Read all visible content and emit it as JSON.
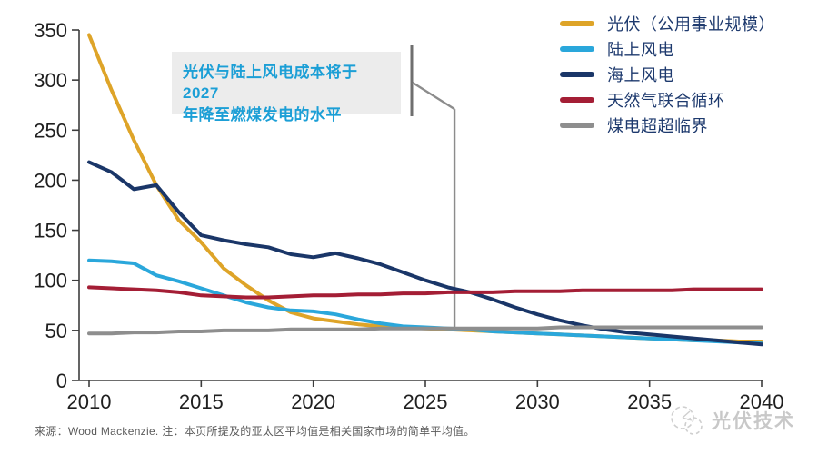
{
  "chart_data": {
    "type": "line",
    "title": "",
    "xlabel": "",
    "ylabel": "",
    "xlim": [
      2010,
      2040
    ],
    "ylim": [
      0,
      350
    ],
    "grid": false,
    "legend_position": "top-right",
    "x_ticks": [
      2010,
      2015,
      2020,
      2025,
      2030,
      2035,
      2040
    ],
    "y_ticks": [
      0,
      50,
      100,
      150,
      200,
      250,
      300,
      350
    ],
    "x_start_year": 2010,
    "series": [
      {
        "key": "solar-pv",
        "name": "光伏（公用事业规模）",
        "color": "#DEA428",
        "values": [
          345,
          290,
          240,
          195,
          160,
          138,
          112,
          95,
          80,
          68,
          62,
          59,
          56,
          54,
          53,
          52,
          51,
          50,
          49,
          48,
          47,
          46,
          45,
          44,
          43,
          42,
          41,
          40,
          40,
          39,
          39
        ]
      },
      {
        "key": "onshore-wind",
        "name": "陆上风电",
        "color": "#2AA7DB",
        "values": [
          120,
          119,
          117,
          105,
          99,
          92,
          85,
          78,
          73,
          70,
          69,
          66,
          61,
          57,
          54,
          53,
          52,
          51,
          49,
          48,
          47,
          46,
          45,
          44,
          43,
          42,
          41,
          40,
          39,
          38,
          37
        ]
      },
      {
        "key": "offshore-wind",
        "name": "海上风电",
        "color": "#1A3668",
        "values": [
          218,
          208,
          191,
          195,
          168,
          145,
          140,
          136,
          133,
          126,
          123,
          127,
          122,
          116,
          108,
          100,
          93,
          88,
          81,
          73,
          66,
          60,
          55,
          51,
          48,
          46,
          44,
          42,
          40,
          38,
          36
        ]
      },
      {
        "key": "gas-ccgt",
        "name": "天然气联合循环",
        "color": "#A41E35",
        "values": [
          93,
          92,
          91,
          90,
          88,
          85,
          84,
          83,
          83,
          84,
          85,
          85,
          86,
          86,
          87,
          87,
          88,
          88,
          88,
          89,
          89,
          89,
          90,
          90,
          90,
          90,
          90,
          91,
          91,
          91,
          91
        ]
      },
      {
        "key": "coal-usc",
        "name": "煤电超超临界",
        "color": "#8E8E8E",
        "values": [
          47,
          47,
          48,
          48,
          49,
          49,
          50,
          50,
          50,
          51,
          51,
          51,
          51,
          52,
          52,
          52,
          52,
          52,
          52,
          52,
          52,
          53,
          53,
          53,
          53,
          53,
          53,
          53,
          53,
          53,
          53
        ]
      }
    ],
    "annotation": {
      "text_line1": "光伏与陆上风电成本将于2027",
      "text_line2": "年降至燃煤发电的水平",
      "text_color": "#1C9FD6",
      "box_color": "#ececec",
      "pointer_year": 2026.3,
      "pointer_top_value": 271,
      "pointer_bottom_value": 51,
      "line_color": "#8C8C8C"
    },
    "axis_color": "#3d3d3d",
    "tick_label_color": "#1f1f1f",
    "legend_text_color": "#1E3A6E"
  },
  "footer": {
    "source_note": "来源：Wood Mackenzie. 注：本页所提及的亚太区平均值是相关国家市场的简单平均值。"
  },
  "watermark": {
    "text": "光伏技术"
  }
}
